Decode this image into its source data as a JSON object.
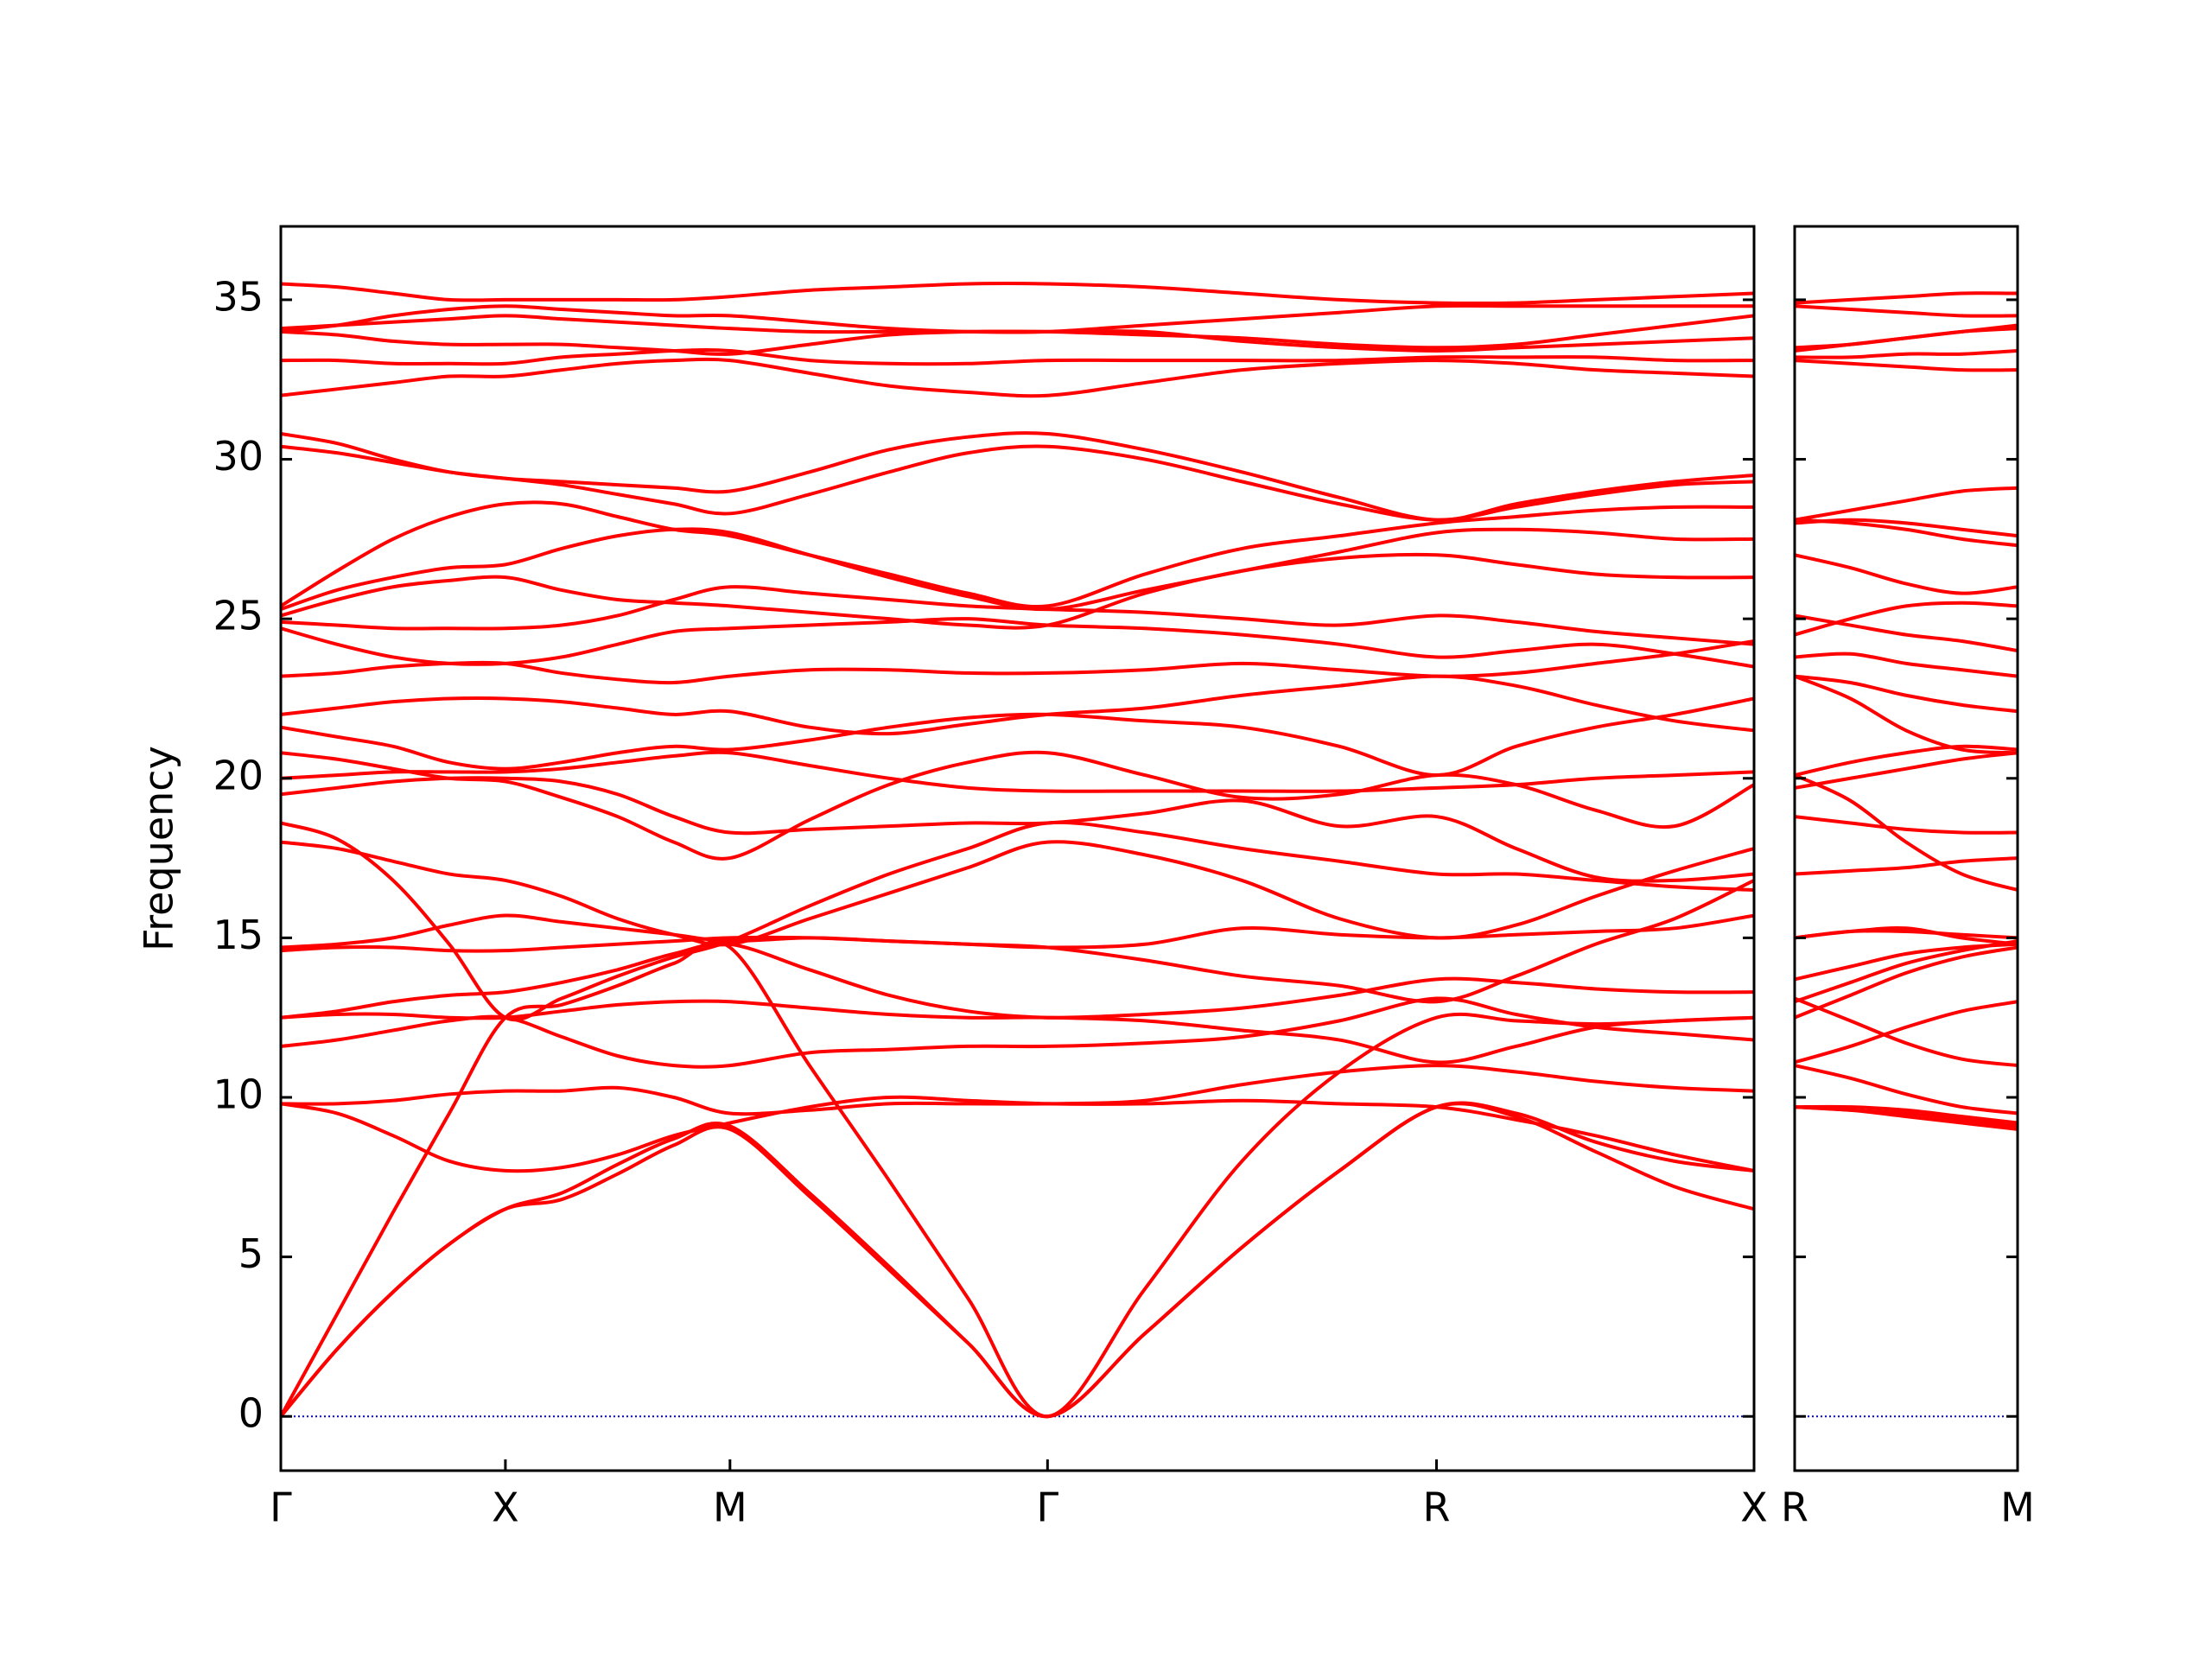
{
  "chart_data": [
    {
      "type": "line",
      "ylabel": "Frequency",
      "color": "#ff0000",
      "show_ytick_labels": true,
      "hline": 0,
      "hline_color": "#0000cc",
      "xlim": [
        0,
        3.28
      ],
      "ylim": [
        -1.7,
        37.3
      ],
      "xticks": [
        {
          "value": 0,
          "label": "Γ"
        },
        {
          "value": 0.5,
          "label": "X"
        },
        {
          "value": 1.0,
          "label": "M"
        },
        {
          "value": 1.707,
          "label": "Γ"
        },
        {
          "value": 2.573,
          "label": "R"
        },
        {
          "value": 3.28,
          "label": "X"
        }
      ],
      "yticks": [
        0,
        5,
        10,
        15,
        20,
        25,
        30,
        35
      ],
      "x": [
        0,
        0.125,
        0.25,
        0.375,
        0.5,
        0.625,
        0.75,
        0.875,
        1.0,
        1.177,
        1.354,
        1.53,
        1.707,
        1.924,
        2.14,
        2.357,
        2.573,
        2.75,
        2.927,
        3.103,
        3.28
      ],
      "series": [
        {
          "values": [
            0,
            2.1,
            3.9,
            5.4,
            6.5,
            6.8,
            7.6,
            8.5,
            9.0,
            6.9,
            4.6,
            2.3,
            0,
            2.6,
            5.3,
            7.7,
            9.7,
            9.4,
            8.3,
            7.2,
            6.5
          ]
        },
        {
          "values": [
            0,
            2.1,
            3.9,
            5.4,
            6.5,
            7.0,
            7.9,
            8.7,
            9.1,
            7.0,
            4.7,
            2.3,
            0,
            2.6,
            5.3,
            7.7,
            9.7,
            9.5,
            8.6,
            8.0,
            7.7
          ]
        },
        {
          "values": [
            0,
            3.2,
            6.4,
            9.5,
            12.5,
            12.9,
            13.5,
            14.2,
            14.7,
            11.0,
            7.4,
            3.7,
            0,
            4.0,
            8.0,
            10.8,
            12.5,
            12.4,
            12.3,
            12.4,
            12.5
          ]
        },
        {
          "values": [
            9.8,
            9.8,
            9.9,
            10.1,
            10.2,
            10.2,
            10.3,
            10.0,
            9.5,
            9.6,
            9.8,
            9.8,
            9.8,
            9.9,
            10.4,
            10.8,
            11.0,
            10.8,
            10.5,
            10.3,
            10.2
          ]
        },
        {
          "values": [
            9.8,
            9.5,
            8.8,
            8.0,
            7.7,
            7.8,
            8.2,
            8.8,
            9.2,
            9.7,
            10.0,
            9.9,
            9.8,
            9.8,
            9.9,
            9.8,
            9.7,
            9.3,
            8.8,
            8.2,
            7.7
          ]
        },
        {
          "values": [
            11.6,
            11.8,
            12.1,
            12.4,
            12.5,
            11.9,
            11.3,
            11.0,
            11.0,
            11.4,
            11.5,
            11.6,
            11.6,
            11.7,
            11.9,
            12.4,
            13.1,
            12.6,
            12.2,
            12.0,
            11.8
          ]
        },
        {
          "values": [
            12.5,
            12.6,
            12.6,
            12.5,
            12.5,
            12.7,
            12.9,
            13.0,
            13.0,
            12.8,
            12.6,
            12.5,
            12.5,
            12.4,
            12.1,
            11.8,
            11.1,
            11.6,
            12.2,
            12.4,
            12.5
          ]
        },
        {
          "values": [
            12.5,
            12.7,
            13.0,
            13.2,
            13.3,
            13.6,
            14.0,
            14.5,
            14.8,
            14.0,
            13.2,
            12.7,
            12.5,
            12.6,
            12.8,
            13.2,
            13.7,
            13.6,
            13.4,
            13.3,
            13.3
          ]
        },
        {
          "values": [
            14.6,
            14.7,
            14.7,
            14.6,
            14.6,
            14.7,
            14.8,
            14.9,
            15.0,
            15.0,
            14.9,
            14.8,
            14.7,
            14.8,
            15.3,
            15.1,
            15.0,
            15.1,
            15.2,
            15.3,
            15.7
          ]
        },
        {
          "values": [
            14.7,
            14.8,
            15.0,
            15.4,
            15.7,
            15.5,
            15.3,
            15.1,
            14.9,
            15.0,
            14.9,
            14.8,
            14.7,
            14.3,
            13.8,
            13.5,
            13.0,
            13.8,
            14.8,
            15.6,
            16.8
          ]
        },
        {
          "values": [
            18.0,
            17.8,
            17.4,
            17.0,
            16.8,
            16.3,
            15.6,
            15.1,
            14.8,
            15.6,
            16.4,
            17.2,
            18.0,
            17.6,
            16.8,
            15.6,
            15.0,
            15.4,
            16.3,
            17.1,
            17.8
          ]
        },
        {
          "values": [
            18.6,
            18.1,
            16.8,
            14.8,
            12.5,
            13.1,
            13.8,
            14.4,
            14.9,
            16.0,
            17.0,
            17.8,
            18.6,
            18.3,
            17.8,
            17.4,
            17.0,
            17.0,
            16.8,
            16.6,
            16.5
          ]
        },
        {
          "values": [
            19.5,
            19.7,
            19.9,
            20.0,
            20.0,
            19.9,
            19.5,
            18.8,
            18.3,
            18.4,
            18.5,
            18.6,
            18.6,
            18.9,
            19.3,
            18.5,
            18.8,
            17.8,
            16.9,
            16.8,
            17.0
          ]
        },
        {
          "values": [
            20.0,
            20.1,
            20.2,
            20.2,
            20.2,
            20.3,
            20.5,
            20.7,
            20.8,
            20.4,
            20.0,
            19.7,
            19.6,
            19.6,
            19.6,
            19.6,
            19.7,
            19.8,
            20.0,
            20.1,
            20.2
          ]
        },
        {
          "values": [
            20.8,
            20.6,
            20.3,
            20.0,
            19.9,
            19.4,
            18.8,
            18.0,
            17.5,
            18.7,
            19.8,
            20.5,
            20.8,
            20.1,
            19.4,
            19.5,
            20.1,
            19.8,
            19.0,
            18.5,
            19.8
          ]
        },
        {
          "values": [
            21.6,
            21.3,
            21.0,
            20.5,
            20.3,
            20.5,
            20.8,
            21.0,
            20.9,
            21.2,
            21.6,
            21.9,
            22.0,
            21.8,
            21.6,
            21.0,
            20.1,
            21.0,
            21.6,
            22.0,
            22.5
          ]
        },
        {
          "values": [
            22.0,
            22.2,
            22.4,
            22.5,
            22.5,
            22.4,
            22.2,
            22.0,
            22.1,
            21.6,
            21.4,
            21.7,
            22.0,
            22.2,
            22.6,
            22.9,
            23.2,
            22.9,
            22.3,
            21.8,
            21.5
          ]
        },
        {
          "values": [
            23.2,
            23.3,
            23.5,
            23.6,
            23.6,
            23.3,
            23.1,
            23.0,
            23.2,
            23.4,
            23.4,
            23.3,
            23.3,
            23.4,
            23.6,
            23.4,
            23.2,
            23.3,
            23.6,
            23.9,
            24.3
          ]
        },
        {
          "values": [
            24.7,
            24.2,
            23.8,
            23.6,
            23.6,
            23.8,
            24.2,
            24.6,
            24.7,
            24.8,
            24.9,
            25.0,
            24.8,
            24.7,
            24.5,
            24.2,
            23.8,
            24.0,
            24.2,
            23.9,
            23.5
          ]
        },
        {
          "values": [
            24.9,
            24.8,
            24.7,
            24.7,
            24.7,
            24.8,
            25.1,
            25.6,
            26.0,
            25.8,
            25.6,
            25.4,
            25.3,
            25.2,
            25.0,
            24.8,
            25.1,
            24.9,
            24.6,
            24.4,
            24.2
          ]
        },
        {
          "values": [
            25.1,
            25.6,
            26.0,
            26.2,
            26.3,
            25.9,
            25.6,
            25.5,
            25.4,
            25.2,
            25.0,
            24.8,
            24.8,
            25.8,
            26.5,
            26.9,
            27.0,
            26.7,
            26.4,
            26.3,
            26.3
          ]
        },
        {
          "values": [
            25.3,
            25.9,
            26.3,
            26.6,
            26.7,
            27.2,
            27.6,
            27.8,
            27.7,
            27.0,
            26.3,
            25.7,
            25.3,
            25.9,
            26.5,
            27.1,
            27.7,
            27.8,
            27.7,
            27.5,
            27.5
          ]
        },
        {
          "values": [
            25.4,
            26.5,
            27.5,
            28.2,
            28.6,
            28.6,
            28.2,
            27.8,
            27.6,
            27.0,
            26.4,
            25.8,
            25.4,
            26.4,
            27.2,
            27.6,
            28.0,
            28.2,
            28.4,
            28.5,
            28.5
          ]
        },
        {
          "values": [
            30.4,
            30.2,
            29.9,
            29.6,
            29.4,
            29.2,
            28.9,
            28.6,
            28.3,
            28.9,
            29.6,
            30.2,
            30.4,
            30.0,
            29.3,
            28.6,
            28.1,
            28.5,
            28.9,
            29.2,
            29.3
          ]
        },
        {
          "values": [
            30.8,
            30.5,
            30.0,
            29.6,
            29.4,
            29.3,
            29.2,
            29.1,
            29.0,
            29.6,
            30.3,
            30.7,
            30.8,
            30.3,
            29.6,
            28.8,
            28.1,
            28.6,
            29.0,
            29.3,
            29.5
          ]
        },
        {
          "values": [
            32.0,
            32.2,
            32.4,
            32.6,
            32.6,
            32.8,
            33.0,
            33.1,
            33.1,
            32.7,
            32.3,
            32.1,
            32.0,
            32.4,
            32.8,
            33.0,
            33.1,
            33.0,
            32.8,
            32.7,
            32.6
          ]
        },
        {
          "values": [
            33.1,
            33.1,
            33.0,
            33.0,
            33.0,
            33.2,
            33.3,
            33.4,
            33.4,
            33.1,
            33.0,
            33.0,
            33.1,
            33.1,
            33.1,
            33.1,
            33.2,
            33.2,
            33.2,
            33.1,
            33.1
          ]
        },
        {
          "values": [
            34.0,
            33.9,
            33.7,
            33.6,
            33.6,
            33.6,
            33.5,
            33.4,
            33.3,
            33.6,
            33.9,
            34.0,
            34.0,
            34.0,
            33.7,
            33.5,
            33.4,
            33.5,
            33.6,
            33.7,
            33.8
          ]
        },
        {
          "values": [
            34.1,
            34.2,
            34.3,
            34.4,
            34.5,
            34.4,
            34.3,
            34.2,
            34.1,
            34.0,
            34.0,
            34.0,
            34.0,
            33.9,
            33.8,
            33.6,
            33.5,
            33.6,
            33.9,
            34.2,
            34.5
          ]
        },
        {
          "values": [
            35.5,
            35.4,
            35.2,
            35.0,
            35.0,
            35.0,
            35.0,
            35.0,
            35.1,
            35.3,
            35.4,
            35.5,
            35.5,
            35.4,
            35.2,
            35.0,
            34.9,
            34.9,
            35.0,
            35.1,
            35.2
          ]
        },
        {
          "values": [
            34.0,
            34.2,
            34.5,
            34.7,
            34.8,
            34.7,
            34.6,
            34.5,
            34.5,
            34.3,
            34.1,
            34.0,
            34.0,
            34.2,
            34.4,
            34.6,
            34.8,
            34.8,
            34.8,
            34.8,
            34.8
          ]
        }
      ]
    },
    {
      "type": "line",
      "color": "#ff0000",
      "show_ytick_labels": false,
      "hline": 0,
      "hline_color": "#0000cc",
      "xlim": [
        0,
        0.5
      ],
      "ylim": [
        -1.7,
        37.3
      ],
      "xticks": [
        {
          "value": 0,
          "label": "R"
        },
        {
          "value": 0.5,
          "label": "M"
        }
      ],
      "yticks": [
        0,
        5,
        10,
        15,
        20,
        25,
        30,
        35
      ],
      "x": [
        0,
        0.125,
        0.25,
        0.375,
        0.5
      ],
      "series": [
        {
          "values": [
            9.7,
            9.6,
            9.4,
            9.2,
            9.0
          ]
        },
        {
          "values": [
            9.7,
            9.6,
            9.5,
            9.3,
            9.1
          ]
        },
        {
          "values": [
            12.5,
            13.2,
            13.9,
            14.4,
            14.7
          ]
        },
        {
          "values": [
            11.0,
            10.6,
            10.1,
            9.7,
            9.5
          ]
        },
        {
          "values": [
            9.7,
            9.7,
            9.6,
            9.4,
            9.2
          ]
        },
        {
          "values": [
            13.1,
            12.4,
            11.7,
            11.2,
            11.0
          ]
        },
        {
          "values": [
            11.1,
            11.6,
            12.2,
            12.7,
            13.0
          ]
        },
        {
          "values": [
            13.7,
            14.1,
            14.5,
            14.7,
            14.8
          ]
        },
        {
          "values": [
            15.0,
            15.2,
            15.2,
            15.1,
            15.0
          ]
        },
        {
          "values": [
            13.0,
            13.6,
            14.2,
            14.6,
            14.9
          ]
        },
        {
          "values": [
            15.0,
            15.2,
            15.3,
            15.0,
            14.8
          ]
        },
        {
          "values": [
            17.0,
            17.1,
            17.2,
            17.4,
            17.5
          ]
        },
        {
          "values": [
            18.8,
            18.6,
            18.4,
            18.3,
            18.3
          ]
        },
        {
          "values": [
            19.7,
            20.0,
            20.3,
            20.6,
            20.8
          ]
        },
        {
          "values": [
            20.1,
            19.3,
            18.0,
            17.0,
            16.5
          ]
        },
        {
          "values": [
            20.1,
            20.5,
            20.8,
            21.0,
            20.9
          ]
        },
        {
          "values": [
            23.2,
            22.5,
            21.5,
            20.9,
            20.8
          ]
        },
        {
          "values": [
            23.2,
            23.0,
            22.6,
            22.3,
            22.1
          ]
        },
        {
          "values": [
            23.8,
            23.9,
            23.6,
            23.4,
            23.2
          ]
        },
        {
          "values": [
            25.1,
            24.8,
            24.5,
            24.3,
            24.0
          ]
        },
        {
          "values": [
            27.0,
            26.6,
            26.1,
            25.8,
            26.0
          ]
        },
        {
          "values": [
            24.5,
            25.0,
            25.4,
            25.5,
            25.4
          ]
        },
        {
          "values": [
            28.0,
            28.1,
            28.0,
            27.8,
            27.6
          ]
        },
        {
          "values": [
            28.1,
            28.0,
            27.8,
            27.5,
            27.3
          ]
        },
        {
          "values": [
            28.1,
            28.4,
            28.7,
            29.0,
            29.1
          ]
        },
        {
          "values": [
            33.1,
            33.0,
            32.9,
            32.8,
            32.8
          ]
        },
        {
          "values": [
            33.2,
            33.2,
            33.3,
            33.3,
            33.4
          ]
        },
        {
          "values": [
            33.4,
            33.6,
            33.8,
            34.0,
            34.1
          ]
        },
        {
          "values": [
            33.5,
            33.6,
            33.8,
            34.0,
            34.2
          ]
        },
        {
          "values": [
            34.9,
            35.0,
            35.1,
            35.2,
            35.2
          ]
        },
        {
          "values": [
            34.8,
            34.7,
            34.6,
            34.5,
            34.5
          ]
        }
      ]
    }
  ]
}
